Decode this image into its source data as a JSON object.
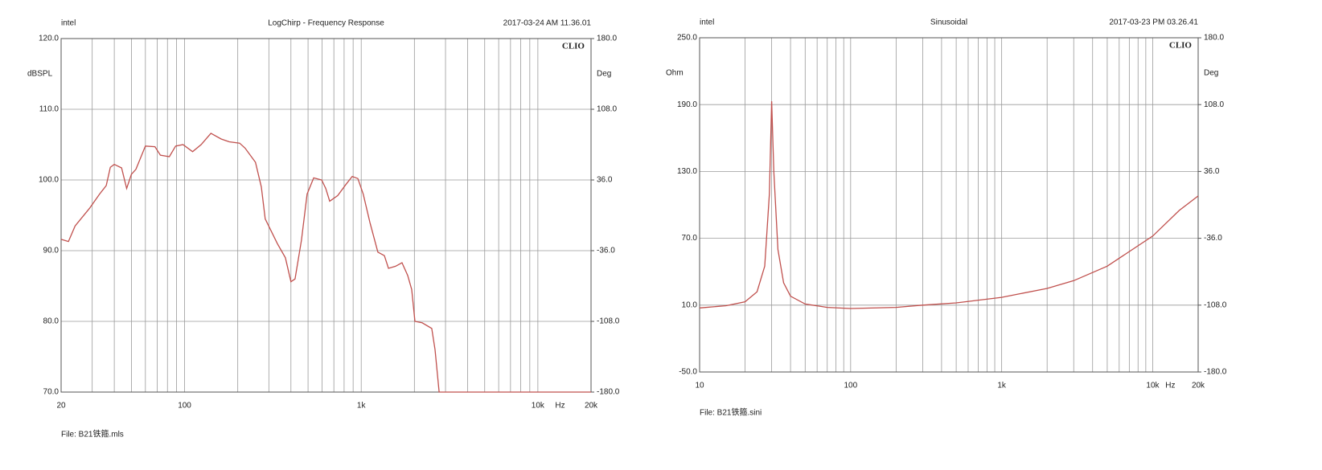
{
  "chart_data": [
    {
      "type": "line",
      "left_header": "intel",
      "title": "LogChirp - Frequency Response",
      "timestamp": "2017-03-24 AM 11.36.01",
      "brand": "CLIO",
      "ylabel": "dBSPL",
      "y2label": "Deg",
      "xlabel": "Hz",
      "footer": "File: B21铁箍.mls",
      "log_x": true,
      "grid": true,
      "color": "#c0504d",
      "xlim": [
        20,
        20000
      ],
      "xticks": [
        20,
        100,
        {
          "value": 1000,
          "label": "1k"
        },
        {
          "value": 10000,
          "label": "10k"
        },
        {
          "value": 20000,
          "label": "20k"
        }
      ],
      "x_minor_grid": [
        30,
        40,
        50,
        60,
        70,
        80,
        90,
        200,
        300,
        400,
        500,
        600,
        700,
        800,
        900,
        2000,
        3000,
        4000,
        5000,
        6000,
        7000,
        8000,
        9000
      ],
      "ylim": [
        70,
        120
      ],
      "yticks": [
        {
          "value": 70,
          "label": "70.0"
        },
        {
          "value": 80,
          "label": "80.0"
        },
        {
          "value": 90,
          "label": "90.0"
        },
        {
          "value": 100,
          "label": "100.0"
        },
        {
          "value": 110,
          "label": "110.0"
        },
        {
          "value": 120,
          "label": "120.0"
        }
      ],
      "y2lim": [
        -180,
        180
      ],
      "y2ticks": [
        {
          "value": -180,
          "label": "-180.0"
        },
        {
          "value": -108,
          "label": "-108.0"
        },
        {
          "value": -36,
          "label": "-36.0"
        },
        {
          "value": 36,
          "label": "36.0"
        },
        {
          "value": 108,
          "label": "108.0"
        },
        {
          "value": 180,
          "label": "180.0"
        }
      ],
      "x": [
        20,
        22,
        24,
        29,
        33,
        36,
        38,
        40,
        44,
        47,
        50,
        53,
        60,
        68,
        73,
        82,
        89,
        98,
        111,
        124,
        141,
        161,
        179,
        205,
        220,
        252,
        272,
        286,
        335,
        372,
        400,
        422,
        459,
        494,
        538,
        597,
        630,
        663,
        736,
        815,
        889,
        957,
        1027,
        1120,
        1242,
        1352,
        1426,
        1565,
        1702,
        1833,
        1932,
        2013,
        2213,
        2507,
        2618,
        2760,
        20000
      ],
      "values": [
        91.6,
        91.3,
        93.5,
        96,
        98,
        99.2,
        101.8,
        102.2,
        101.7,
        98.8,
        100.8,
        101.5,
        104.8,
        104.7,
        103.5,
        103.3,
        104.8,
        105,
        104,
        105,
        106.6,
        105.8,
        105.4,
        105.2,
        104.5,
        102.5,
        99,
        94.5,
        91,
        89,
        85.6,
        86,
        91.5,
        98,
        100.3,
        100,
        98.8,
        97,
        97.8,
        99.3,
        100.5,
        100.2,
        98,
        94,
        89.8,
        89.3,
        87.5,
        87.8,
        88.3,
        86.5,
        84.5,
        80,
        79.8,
        79,
        76,
        70,
        70
      ]
    },
    {
      "type": "line",
      "left_header": "intel",
      "title": "Sinusoidal",
      "timestamp": "2017-03-23 PM 03.26.41",
      "brand": "CLIO",
      "ylabel": "Ohm",
      "y2label": "Deg",
      "xlabel": "Hz",
      "footer": "File: B21铁箍.sini",
      "log_x": true,
      "grid": true,
      "color": "#c0504d",
      "xlim": [
        10,
        20000
      ],
      "xticks": [
        10,
        100,
        {
          "value": 1000,
          "label": "1k"
        },
        {
          "value": 10000,
          "label": "10k"
        },
        {
          "value": 20000,
          "label": "20k"
        }
      ],
      "x_minor_grid": [
        20,
        30,
        40,
        50,
        60,
        70,
        80,
        90,
        200,
        300,
        400,
        500,
        600,
        700,
        800,
        900,
        2000,
        3000,
        4000,
        5000,
        6000,
        7000,
        8000,
        9000
      ],
      "ylim": [
        -50,
        250
      ],
      "yticks": [
        {
          "value": -50,
          "label": "-50.0"
        },
        {
          "value": 10,
          "label": "10.0"
        },
        {
          "value": 70,
          "label": "70.0"
        },
        {
          "value": 130,
          "label": "130.0"
        },
        {
          "value": 190,
          "label": "190.0"
        },
        {
          "value": 250,
          "label": "250.0"
        }
      ],
      "y2lim": [
        -180,
        180
      ],
      "y2ticks": [
        {
          "value": -180,
          "label": "-180.0"
        },
        {
          "value": -108,
          "label": "-108.0"
        },
        {
          "value": -36,
          "label": "-36.0"
        },
        {
          "value": 36,
          "label": "36.0"
        },
        {
          "value": 108,
          "label": "108.0"
        },
        {
          "value": 180,
          "label": "180.0"
        }
      ],
      "x": [
        10,
        15,
        20,
        24,
        27,
        29,
        30,
        31,
        33,
        36,
        40,
        50,
        70,
        100,
        200,
        300,
        500,
        1000,
        1300,
        2000,
        3000,
        5000,
        10000,
        15000,
        20000
      ],
      "values": [
        7.5,
        9.5,
        13,
        22,
        45,
        110,
        193,
        130,
        60,
        30,
        18,
        11,
        8,
        7,
        8,
        10,
        12,
        17,
        20,
        25,
        32,
        45,
        72,
        95,
        108
      ]
    }
  ]
}
